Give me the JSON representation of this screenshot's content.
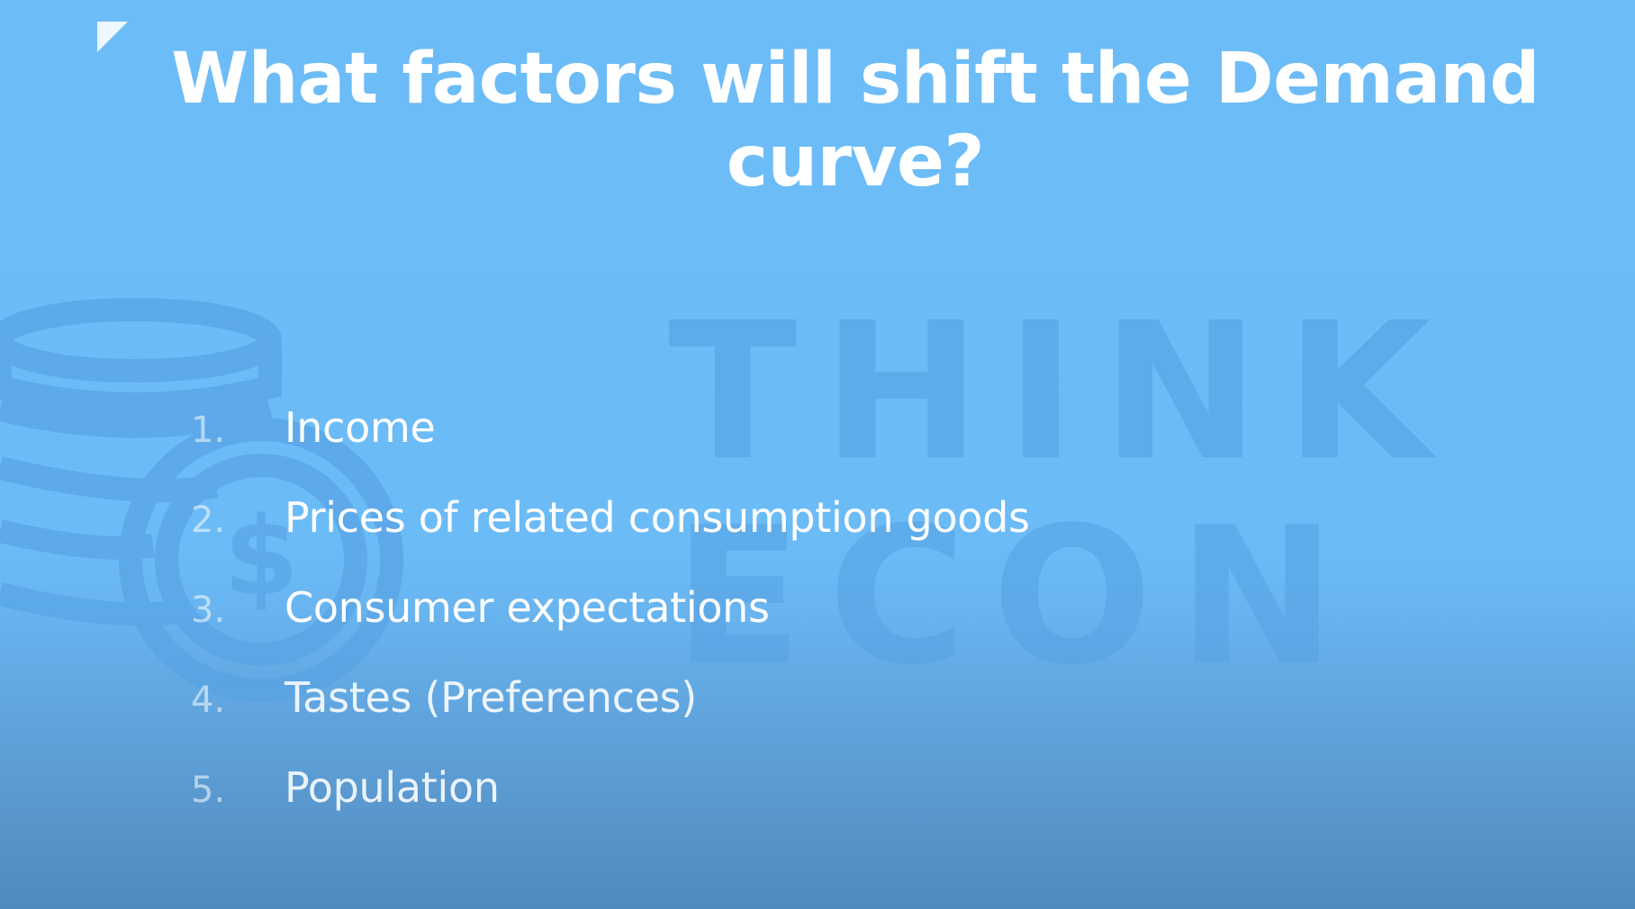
{
  "slide": {
    "title": "What factors will shift the Demand curve?",
    "watermark": {
      "line1": "THINK",
      "line2": "ECON",
      "icon": "coin-stack-dollar-icon"
    },
    "factors": [
      {
        "number": "1.",
        "label": "Income"
      },
      {
        "number": "2.",
        "label": "Prices of related consumption goods"
      },
      {
        "number": "3.",
        "label": "Consumer expectations"
      },
      {
        "number": "4.",
        "label": "Tastes (Preferences)"
      },
      {
        "number": "5.",
        "label": "Population"
      }
    ]
  },
  "colors": {
    "background": "#6cbcf8",
    "text": "#ffffff",
    "watermark": "#5aa6e6"
  }
}
